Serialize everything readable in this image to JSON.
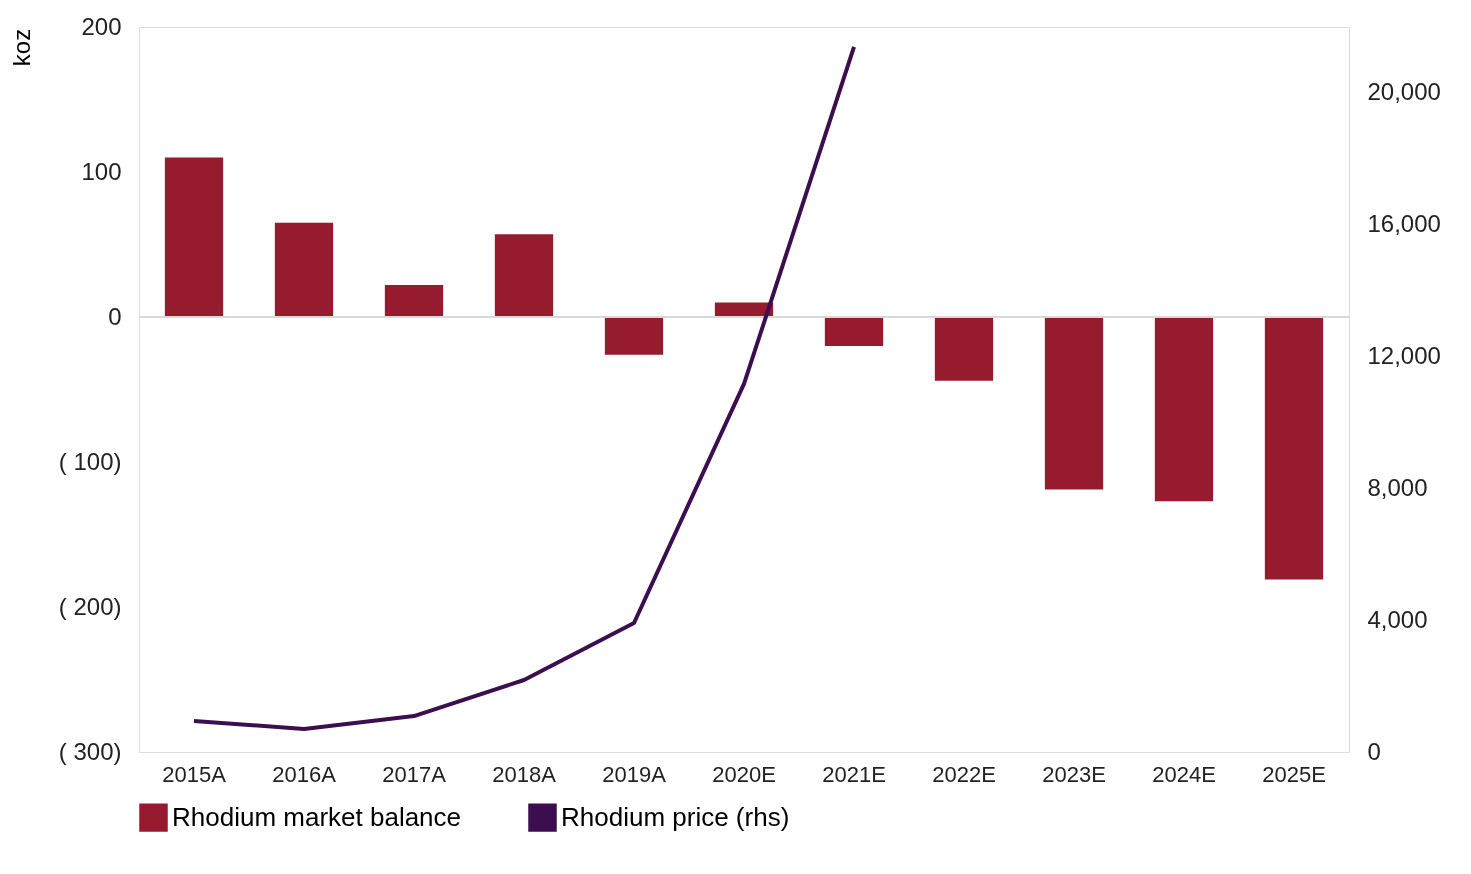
{
  "chart_data": {
    "type": "bar",
    "ylabel": "koz",
    "categories": [
      "2015A",
      "2016A",
      "2017A",
      "2018A",
      "2019A",
      "2020E",
      "2021E",
      "2022E",
      "2023E",
      "2024E",
      "2025E"
    ],
    "series": [
      {
        "name": "Rhodium market balance",
        "color": "#961b2e",
        "values": [
          110,
          65,
          22,
          57,
          -26,
          10,
          -20,
          -44,
          -119,
          -127,
          -181
        ]
      },
      {
        "name": "Rhodium price (rhs)",
        "type": "line",
        "axis": "y2",
        "color": "#3d0e4f",
        "values": [
          940,
          700,
          1090,
          2185,
          3915,
          11170,
          21400,
          null,
          null,
          null,
          null
        ]
      }
    ],
    "ylim": [
      -300,
      200
    ],
    "yticks": [
      {
        "value": -300,
        "label": "( 300)"
      },
      {
        "value": -200,
        "label": "( 200)"
      },
      {
        "value": -100,
        "label": "( 100)"
      },
      0,
      100,
      200
    ],
    "y2lim": [
      0,
      22000
    ],
    "y2ticks": [
      0,
      {
        "value": 4000,
        "label": "4,000"
      },
      {
        "value": 8000,
        "label": "8,000"
      },
      {
        "value": 12000,
        "label": "12,000"
      },
      {
        "value": 16000,
        "label": "16,000"
      },
      {
        "value": 20000,
        "label": "20,000"
      }
    ],
    "ref_lines": [
      {
        "axis": "y",
        "value": 0,
        "color": "#d9d9d9"
      }
    ],
    "grid": false,
    "legend": "bottom"
  }
}
